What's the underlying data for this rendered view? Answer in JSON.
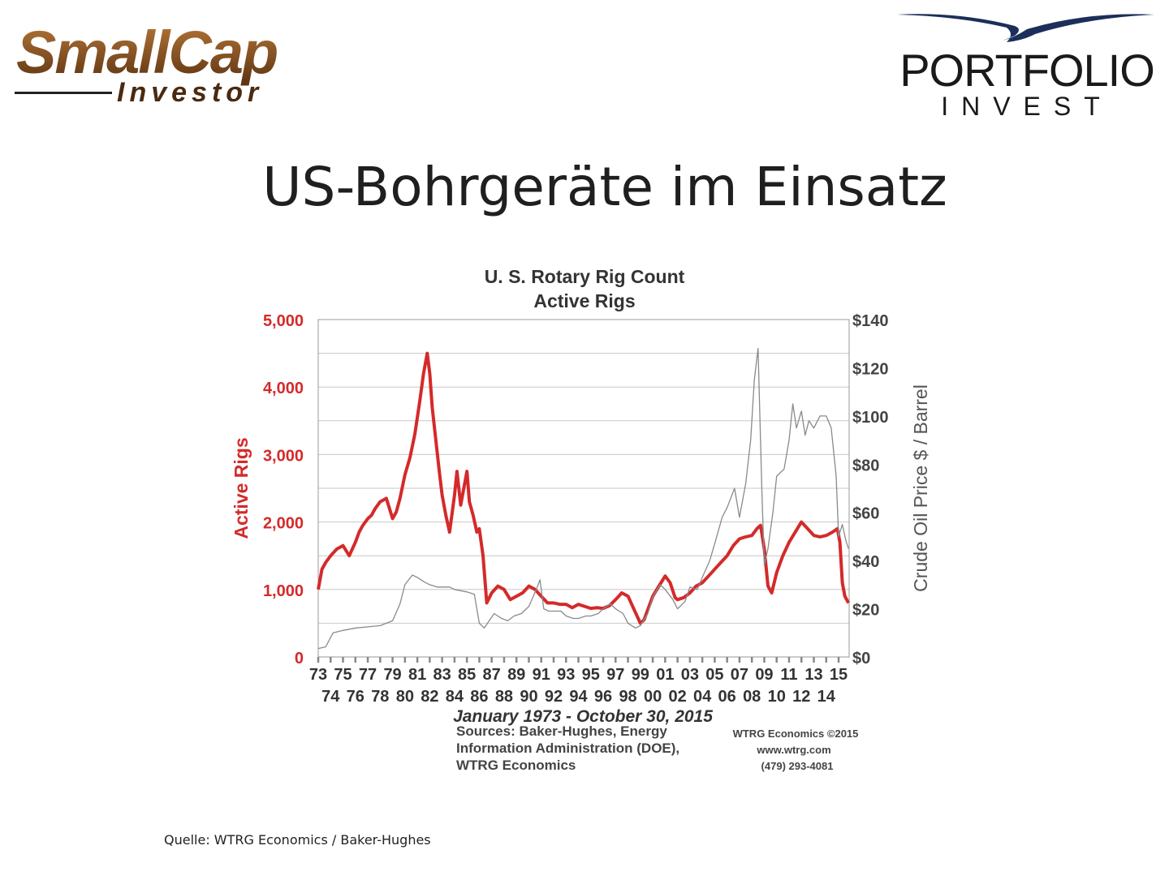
{
  "logos": {
    "left": {
      "word1": "SmallCap",
      "word2": "Investor"
    },
    "right": {
      "line1": "PORTFOLIO",
      "line2": "INVEST"
    }
  },
  "slide_title": "US-Bohrgeräte im Einsatz",
  "source_note": "Quelle: WTRG Economics / Baker-Hughes",
  "colors": {
    "rigs": "#d42a2a",
    "oil": "#8a8a8a",
    "grid": "#c8c8c8",
    "title": "#1f1f1f",
    "logo_brown": "#8a4e1c"
  },
  "chart_data": {
    "type": "line",
    "title": "U. S. Rotary Rig Count",
    "subtitle": "Active Rigs",
    "period": "January 1973 - October 30, 2015",
    "x_label_rows": [
      [
        "73",
        "75",
        "77",
        "79",
        "81",
        "83",
        "85",
        "87",
        "89",
        "91",
        "93",
        "95",
        "97",
        "99",
        "01",
        "03",
        "05",
        "07",
        "09",
        "11",
        "13",
        "15"
      ],
      [
        "74",
        "76",
        "78",
        "80",
        "82",
        "84",
        "86",
        "88",
        "90",
        "92",
        "94",
        "96",
        "98",
        "00",
        "02",
        "04",
        "06",
        "08",
        "10",
        "12",
        "14"
      ]
    ],
    "left_axis": {
      "label": "Active Rigs",
      "ticks": [
        "5,000",
        "4,000",
        "3,000",
        "2,000",
        "1,000",
        "0"
      ],
      "range": [
        0,
        5000
      ]
    },
    "right_axis": {
      "label": "Crude Oil Price $ / Barrel",
      "ticks": [
        "$140",
        "$120",
        "$100",
        "$80",
        "$60",
        "$40",
        "$20",
        "$0"
      ],
      "range": [
        0,
        140
      ]
    },
    "grid": true,
    "x_range": [
      1973,
      2015.85
    ],
    "series": [
      {
        "name": "Active Rigs",
        "axis": "left",
        "x": [
          1973.0,
          1973.3,
          1973.6,
          1974.0,
          1974.5,
          1975.0,
          1975.5,
          1976.0,
          1976.3,
          1976.6,
          1977.0,
          1977.3,
          1977.6,
          1978.0,
          1978.5,
          1979.0,
          1979.3,
          1979.6,
          1980.0,
          1980.4,
          1980.8,
          1981.2,
          1981.5,
          1981.8,
          1982.0,
          1982.2,
          1982.5,
          1982.8,
          1983.0,
          1983.3,
          1983.6,
          1984.0,
          1984.2,
          1984.5,
          1984.8,
          1985.0,
          1985.2,
          1985.5,
          1985.8,
          1986.0,
          1986.3,
          1986.6,
          1987.0,
          1987.5,
          1988.0,
          1988.5,
          1989.0,
          1989.5,
          1990.0,
          1990.5,
          1991.0,
          1991.5,
          1992.0,
          1992.5,
          1993.0,
          1993.5,
          1994.0,
          1994.5,
          1995.0,
          1995.5,
          1996.0,
          1996.5,
          1997.0,
          1997.5,
          1998.0,
          1998.5,
          1999.0,
          1999.3,
          1999.7,
          2000.0,
          2000.5,
          2001.0,
          2001.4,
          2001.8,
          2002.0,
          2002.5,
          2003.0,
          2003.5,
          2004.0,
          2004.5,
          2005.0,
          2005.5,
          2006.0,
          2006.5,
          2007.0,
          2007.5,
          2008.0,
          2008.4,
          2008.7,
          2009.0,
          2009.3,
          2009.6,
          2010.0,
          2010.5,
          2011.0,
          2011.5,
          2012.0,
          2012.5,
          2013.0,
          2013.5,
          2014.0,
          2014.5,
          2014.9,
          2015.1,
          2015.3,
          2015.5,
          2015.8
        ],
        "values": [
          1000,
          1300,
          1400,
          1500,
          1600,
          1650,
          1500,
          1700,
          1850,
          1950,
          2050,
          2100,
          2200,
          2300,
          2350,
          2050,
          2150,
          2350,
          2700,
          2950,
          3300,
          3800,
          4200,
          4500,
          4200,
          3700,
          3200,
          2700,
          2400,
          2100,
          1850,
          2400,
          2750,
          2250,
          2550,
          2750,
          2300,
          2100,
          1850,
          1900,
          1500,
          800,
          950,
          1050,
          1000,
          850,
          900,
          950,
          1050,
          1000,
          900,
          800,
          800,
          780,
          780,
          730,
          780,
          750,
          720,
          730,
          720,
          760,
          850,
          950,
          900,
          700,
          500,
          550,
          750,
          900,
          1050,
          1200,
          1100,
          880,
          850,
          880,
          950,
          1050,
          1100,
          1200,
          1300,
          1400,
          1500,
          1650,
          1750,
          1780,
          1800,
          1900,
          1950,
          1600,
          1050,
          950,
          1250,
          1500,
          1700,
          1850,
          2000,
          1900,
          1800,
          1780,
          1800,
          1850,
          1900,
          1700,
          1100,
          900,
          800
        ]
      },
      {
        "name": "Crude Oil Price $ / Barrel",
        "axis": "right",
        "x": [
          1973.0,
          1973.6,
          1974.2,
          1975.0,
          1976.0,
          1977.0,
          1978.0,
          1979.0,
          1979.6,
          1980.0,
          1980.6,
          1981.0,
          1981.6,
          1982.0,
          1982.6,
          1983.0,
          1983.6,
          1984.0,
          1985.0,
          1985.6,
          1986.0,
          1986.4,
          1986.8,
          1987.2,
          1987.8,
          1988.3,
          1988.8,
          1989.4,
          1990.0,
          1990.6,
          1990.9,
          1991.2,
          1991.6,
          1992.0,
          1992.6,
          1993.0,
          1993.6,
          1994.0,
          1994.6,
          1995.0,
          1995.6,
          1996.0,
          1996.6,
          1997.0,
          1997.6,
          1998.0,
          1998.6,
          1999.0,
          1999.6,
          2000.0,
          2000.6,
          2001.0,
          2001.6,
          2002.0,
          2002.6,
          2003.0,
          2003.6,
          2004.0,
          2004.6,
          2005.0,
          2005.6,
          2006.0,
          2006.6,
          2007.0,
          2007.5,
          2007.9,
          2008.2,
          2008.5,
          2008.8,
          2009.0,
          2009.3,
          2009.7,
          2010.0,
          2010.6,
          2011.0,
          2011.3,
          2011.6,
          2012.0,
          2012.3,
          2012.6,
          2013.0,
          2013.5,
          2014.0,
          2014.4,
          2014.8,
          2015.0,
          2015.3,
          2015.6,
          2015.8
        ],
        "values": [
          3.5,
          4.2,
          10,
          11,
          12,
          12.5,
          13,
          15,
          22,
          30,
          34,
          33,
          31,
          30,
          29,
          29,
          29,
          28,
          27,
          26,
          14,
          12,
          15,
          18,
          16,
          15,
          17,
          18,
          21,
          28,
          32,
          20,
          19,
          19,
          19,
          17,
          16,
          16,
          17,
          17,
          18,
          20,
          22,
          20,
          18,
          14,
          12,
          13,
          18,
          25,
          30,
          28,
          24,
          20,
          23,
          29,
          28,
          33,
          40,
          47,
          58,
          62,
          70,
          58,
          72,
          90,
          115,
          128,
          70,
          38,
          45,
          60,
          75,
          78,
          90,
          105,
          95,
          102,
          92,
          98,
          95,
          100,
          100,
          95,
          75,
          50,
          55,
          48,
          45
        ]
      }
    ],
    "sources_lines": [
      "Sources: Baker-Hughes, Energy",
      "Information Administration (DOE),",
      "WTRG Economics"
    ],
    "credit_lines": [
      "WTRG Economics  ©2015",
      "www.wtrg.com",
      "(479) 293-4081"
    ]
  }
}
